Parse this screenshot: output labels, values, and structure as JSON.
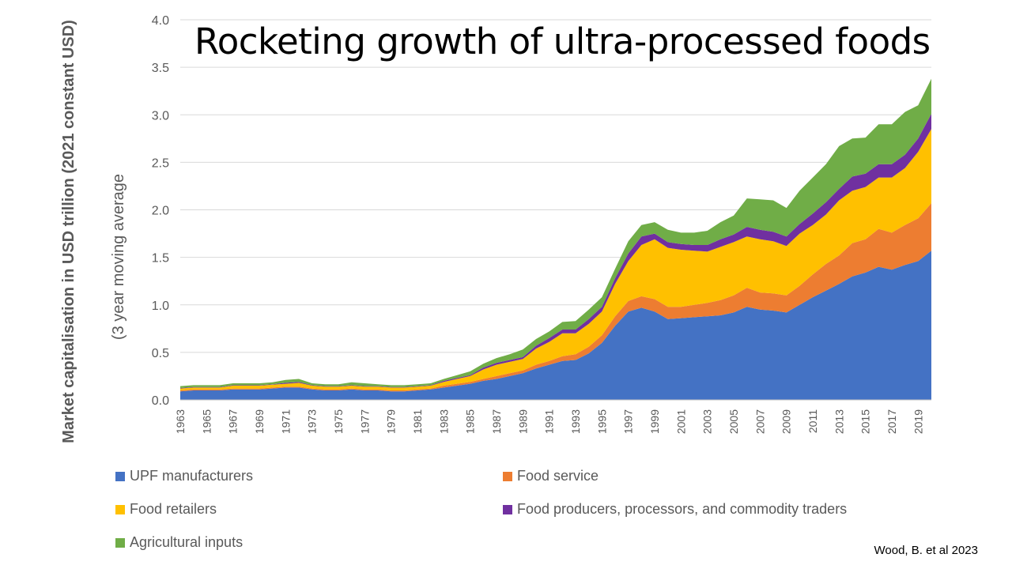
{
  "title": "Rocketing growth of ultra-processed foods",
  "source": "Wood, B. et al 2023",
  "chart_data": {
    "type": "area",
    "stacked": true,
    "title": "Rocketing growth of ultra-processed foods",
    "ylabel": "Market capitalisation in USD trillion (2021 constant USD)",
    "ylabel_sub": "(3 year moving average",
    "xlabel": "",
    "ylim": [
      0,
      4.0
    ],
    "yticks": [
      "0.0",
      "0.5",
      "1.0",
      "1.5",
      "2.0",
      "2.5",
      "3.0",
      "3.5",
      "4.0"
    ],
    "xticks": [
      "1963",
      "1965",
      "1967",
      "1969",
      "1971",
      "1973",
      "1975",
      "1977",
      "1979",
      "1981",
      "1983",
      "1985",
      "1987",
      "1989",
      "1991",
      "1993",
      "1995",
      "1997",
      "1999",
      "2001",
      "2003",
      "2005",
      "2007",
      "2009",
      "2011",
      "2013",
      "2015",
      "2017",
      "2019"
    ],
    "grid": true,
    "legend_position": "bottom",
    "x": [
      1963,
      1964,
      1965,
      1966,
      1967,
      1968,
      1969,
      1970,
      1971,
      1972,
      1973,
      1974,
      1975,
      1976,
      1977,
      1978,
      1979,
      1980,
      1981,
      1982,
      1983,
      1984,
      1985,
      1986,
      1987,
      1988,
      1989,
      1990,
      1991,
      1992,
      1993,
      1994,
      1995,
      1996,
      1997,
      1998,
      1999,
      2000,
      2001,
      2002,
      2003,
      2004,
      2005,
      2006,
      2007,
      2008,
      2009,
      2010,
      2011,
      2012,
      2013,
      2014,
      2015,
      2016,
      2017,
      2018,
      2019,
      2020
    ],
    "series": [
      {
        "name": "UPF manufacturers",
        "color": "#4472C4",
        "values": [
          0.09,
          0.1,
          0.1,
          0.1,
          0.11,
          0.11,
          0.11,
          0.12,
          0.13,
          0.13,
          0.11,
          0.1,
          0.1,
          0.11,
          0.1,
          0.1,
          0.09,
          0.09,
          0.1,
          0.11,
          0.13,
          0.15,
          0.17,
          0.2,
          0.22,
          0.25,
          0.28,
          0.33,
          0.37,
          0.41,
          0.42,
          0.49,
          0.6,
          0.78,
          0.93,
          0.97,
          0.93,
          0.85,
          0.86,
          0.87,
          0.88,
          0.89,
          0.92,
          0.98,
          0.95,
          0.94,
          0.92,
          1.0,
          1.08,
          1.15,
          1.22,
          1.3,
          1.34,
          1.4,
          1.37,
          1.42,
          1.46,
          1.57
        ]
      },
      {
        "name": "Food service",
        "color": "#ED7D31",
        "values": [
          0.01,
          0.01,
          0.01,
          0.01,
          0.01,
          0.01,
          0.01,
          0.01,
          0.01,
          0.01,
          0.01,
          0.01,
          0.01,
          0.01,
          0.01,
          0.01,
          0.01,
          0.01,
          0.01,
          0.01,
          0.02,
          0.02,
          0.02,
          0.02,
          0.03,
          0.03,
          0.03,
          0.04,
          0.04,
          0.05,
          0.06,
          0.07,
          0.08,
          0.1,
          0.11,
          0.12,
          0.13,
          0.13,
          0.12,
          0.13,
          0.14,
          0.16,
          0.18,
          0.2,
          0.18,
          0.18,
          0.18,
          0.2,
          0.24,
          0.28,
          0.3,
          0.35,
          0.35,
          0.4,
          0.39,
          0.42,
          0.45,
          0.5
        ]
      },
      {
        "name": "Food retailers",
        "color": "#FFC000",
        "values": [
          0.02,
          0.02,
          0.02,
          0.02,
          0.03,
          0.03,
          0.03,
          0.03,
          0.03,
          0.04,
          0.03,
          0.03,
          0.03,
          0.03,
          0.03,
          0.03,
          0.03,
          0.03,
          0.03,
          0.03,
          0.04,
          0.05,
          0.06,
          0.1,
          0.12,
          0.12,
          0.12,
          0.17,
          0.2,
          0.24,
          0.22,
          0.24,
          0.25,
          0.34,
          0.42,
          0.54,
          0.63,
          0.62,
          0.6,
          0.57,
          0.54,
          0.56,
          0.56,
          0.54,
          0.56,
          0.55,
          0.52,
          0.55,
          0.52,
          0.52,
          0.58,
          0.55,
          0.55,
          0.54,
          0.58,
          0.6,
          0.7,
          0.78
        ]
      },
      {
        "name": "Food producers, processors, and commodity traders",
        "color": "#7030A0",
        "values": [
          0.005,
          0.005,
          0.005,
          0.005,
          0.005,
          0.005,
          0.005,
          0.005,
          0.01,
          0.01,
          0.005,
          0.005,
          0.005,
          0.005,
          0.005,
          0.005,
          0.005,
          0.005,
          0.005,
          0.005,
          0.01,
          0.01,
          0.01,
          0.02,
          0.02,
          0.02,
          0.02,
          0.03,
          0.04,
          0.04,
          0.04,
          0.05,
          0.05,
          0.06,
          0.08,
          0.09,
          0.06,
          0.06,
          0.06,
          0.06,
          0.07,
          0.08,
          0.08,
          0.1,
          0.1,
          0.1,
          0.1,
          0.1,
          0.12,
          0.13,
          0.12,
          0.15,
          0.14,
          0.14,
          0.14,
          0.14,
          0.14,
          0.16
        ]
      },
      {
        "name": "Agricultural inputs",
        "color": "#70AD47",
        "values": [
          0.02,
          0.02,
          0.02,
          0.02,
          0.02,
          0.02,
          0.02,
          0.02,
          0.03,
          0.03,
          0.02,
          0.02,
          0.02,
          0.03,
          0.03,
          0.02,
          0.02,
          0.02,
          0.02,
          0.02,
          0.02,
          0.03,
          0.04,
          0.04,
          0.05,
          0.06,
          0.08,
          0.07,
          0.07,
          0.08,
          0.09,
          0.1,
          0.1,
          0.1,
          0.13,
          0.12,
          0.12,
          0.13,
          0.12,
          0.13,
          0.15,
          0.18,
          0.2,
          0.3,
          0.32,
          0.33,
          0.3,
          0.35,
          0.38,
          0.4,
          0.45,
          0.4,
          0.38,
          0.42,
          0.42,
          0.45,
          0.35,
          0.37
        ]
      }
    ]
  }
}
